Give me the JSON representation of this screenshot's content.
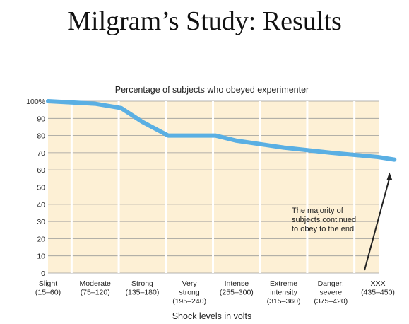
{
  "slide": {
    "title": "Milgram’s Study: Results"
  },
  "colors": {
    "plot_background": "#fdf0d5",
    "grid": "#9a9a9a",
    "line": "#5aafe3",
    "arrow": "#222222"
  },
  "chart_data": {
    "type": "line",
    "title": "Percentage of subjects who obeyed experimenter",
    "xlabel": "Shock levels in volts",
    "ylabel": "",
    "ylim": [
      0,
      100
    ],
    "yticks": [
      "0",
      "10",
      "20",
      "30",
      "40",
      "50",
      "60",
      "70",
      "80",
      "90",
      "100%"
    ],
    "categories": [
      [
        "Slight",
        "(15–60)"
      ],
      [
        "Moderate",
        "(75–120)"
      ],
      [
        "Strong",
        "(135–180)"
      ],
      [
        "Very",
        "strong",
        "(195–240)"
      ],
      [
        "Intense",
        "(255–300)"
      ],
      [
        "Extreme",
        "intensity",
        "(315–360)"
      ],
      [
        "Danger:",
        "severe",
        "(375–420)"
      ],
      [
        "XXX",
        "(435–450)"
      ]
    ],
    "x": [
      0,
      1,
      1.55,
      2,
      2.55,
      3,
      3.55,
      4,
      5,
      6,
      7,
      7.35
    ],
    "values": [
      100,
      98.5,
      96,
      88,
      80,
      80,
      80,
      77,
      73,
      70,
      67.5,
      66
    ],
    "grid": true,
    "annotation": {
      "lines": [
        "The majority of",
        "subjects continued",
        "to obey to the end"
      ],
      "points_to": {
        "x": 7.35,
        "y": 66
      }
    }
  }
}
